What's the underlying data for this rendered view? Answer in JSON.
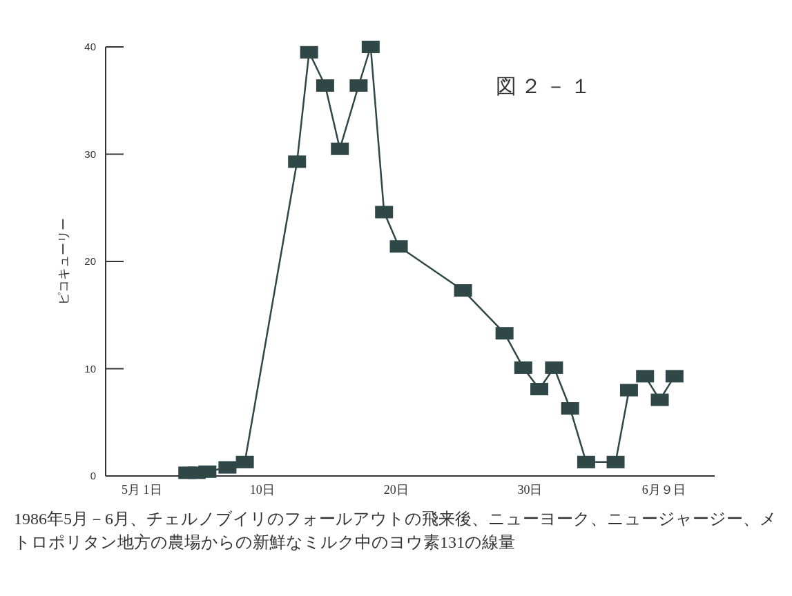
{
  "chart_data": {
    "type": "line",
    "title": "図２－１",
    "ylabel": "ピコキューリー",
    "annotations": [
      "1986年5月－6月、チェルノブイリのフォールアウトの飛来後、ニューヨーク、ニュージャージー、メトロポリタン地方の農場からの新鮮なミルク中のヨウ素131の線量"
    ],
    "xlim": [
      -1.7,
      43.8
    ],
    "xticks": [
      {
        "value": 1,
        "label": "5月 1日"
      },
      {
        "value": 10,
        "label": "10日"
      },
      {
        "value": 20,
        "label": "20日"
      },
      {
        "value": 30,
        "label": "30日"
      },
      {
        "value": 40,
        "label": "6月９日"
      }
    ],
    "ylim": [
      0,
      40
    ],
    "yticks": [
      0,
      10,
      20,
      30,
      40
    ],
    "marker": "square",
    "line_style": "solid",
    "series": [
      {
        "color": "#2f4747",
        "x": [
          4.4,
          5.1,
          5.9,
          7.4,
          8.7,
          12.6,
          13.5,
          14.7,
          15.8,
          17.2,
          18.1,
          19.1,
          20.2,
          25.0,
          28.1,
          29.5,
          30.7,
          31.8,
          33.0,
          34.2,
          36.4,
          37.4
        ],
        "values": [
          0.3,
          0.3,
          0.4,
          0.8,
          1.3,
          29.3,
          39.5,
          36.4,
          30.5,
          36.4,
          40,
          24.6,
          21.4,
          17.3,
          13.3,
          10.1,
          8.1,
          10.1,
          6.3,
          1.3,
          1.3,
          8
        ]
      },
      {
        "color": "#2f4747",
        "x": [
          38.6,
          39.7,
          40.8
        ],
        "values": [
          9.3,
          7.1,
          9.3
        ]
      }
    ]
  }
}
